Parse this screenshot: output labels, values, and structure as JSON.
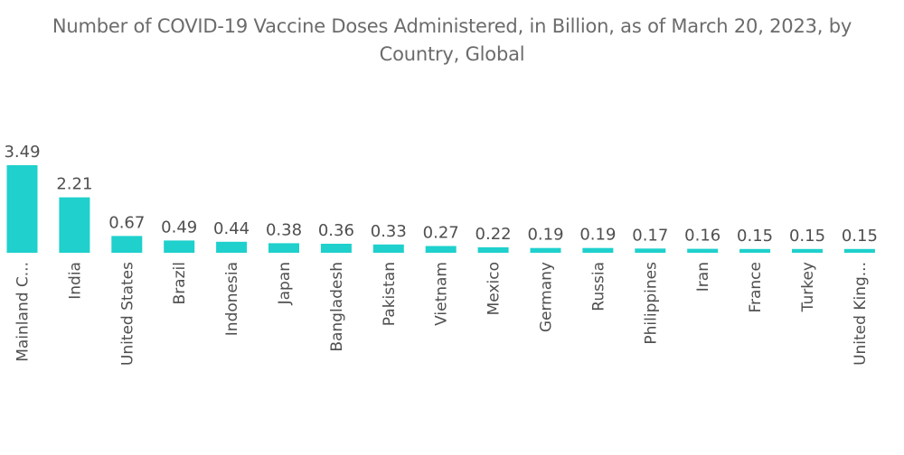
{
  "chart_data": {
    "type": "bar",
    "title": "Number of COVID-19 Vaccine Doses Administered, in Billion, as of March 20, 2023, by Country, Global",
    "title_lines": [
      "Number of COVID-19 Vaccine Doses Administered, in Billion, as of March 20, 2023, by",
      "Country, Global"
    ],
    "categories": [
      "Mainland C...",
      "India",
      "United States",
      "Brazil",
      "Indonesia",
      "Japan",
      "Bangladesh",
      "Pakistan",
      "Vietnam",
      "Mexico",
      "Germany",
      "Russia",
      "Philippines",
      "Iran",
      "France",
      "Turkey",
      "United King..."
    ],
    "values": [
      3.49,
      2.21,
      0.67,
      0.49,
      0.44,
      0.38,
      0.36,
      0.33,
      0.27,
      0.22,
      0.19,
      0.19,
      0.17,
      0.16,
      0.15,
      0.15,
      0.15
    ],
    "xlabel": "",
    "ylabel": "",
    "ylim": [
      0,
      3.49
    ],
    "grid": false,
    "legend": "none",
    "bar_color": "#1fd0cc"
  }
}
